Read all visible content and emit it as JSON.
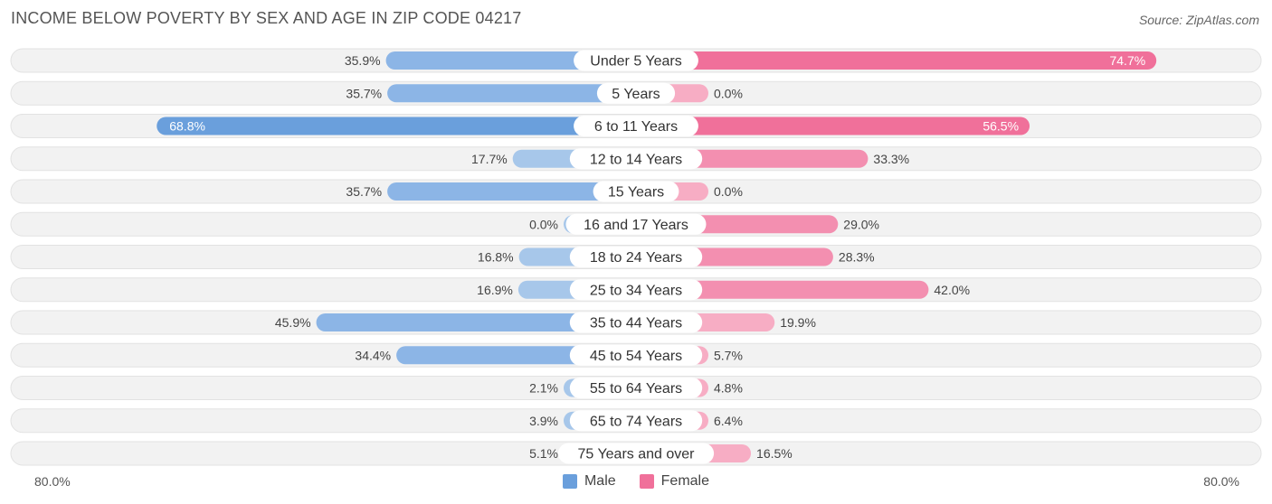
{
  "chart_data": {
    "type": "bar",
    "orientation": "horizontal-diverging",
    "title": "INCOME BELOW POVERTY BY SEX AND AGE IN ZIP CODE 04217",
    "source": "Source: ZipAtlas.com",
    "categories": [
      "Under 5 Years",
      "5 Years",
      "6 to 11 Years",
      "12 to 14 Years",
      "15 Years",
      "16 and 17 Years",
      "18 to 24 Years",
      "25 to 34 Years",
      "35 to 44 Years",
      "45 to 54 Years",
      "55 to 64 Years",
      "65 to 74 Years",
      "75 Years and over"
    ],
    "series": [
      {
        "name": "Male",
        "values": [
          35.9,
          35.7,
          68.8,
          17.7,
          35.7,
          0.0,
          16.8,
          16.9,
          45.9,
          34.4,
          2.1,
          3.9,
          5.1
        ],
        "labels": [
          "35.9%",
          "35.7%",
          "68.8%",
          "17.7%",
          "35.7%",
          "0.0%",
          "16.8%",
          "16.9%",
          "45.9%",
          "34.4%",
          "2.1%",
          "3.9%",
          "5.1%"
        ]
      },
      {
        "name": "Female",
        "values": [
          74.7,
          0.0,
          56.5,
          33.3,
          0.0,
          29.0,
          28.3,
          42.0,
          19.9,
          5.7,
          4.8,
          6.4,
          16.5
        ],
        "labels": [
          "74.7%",
          "0.0%",
          "56.5%",
          "33.3%",
          "0.0%",
          "29.0%",
          "28.3%",
          "42.0%",
          "19.9%",
          "5.7%",
          "4.8%",
          "6.4%",
          "16.5%"
        ]
      }
    ],
    "xlim": [
      -80,
      80
    ],
    "axis_min_label": "80.0%",
    "axis_max_label": "80.0%",
    "legend_position": "bottom-center",
    "colors": {
      "male_strong": "#6a9fdc",
      "male_light": "#a7c7ea",
      "female_strong": "#f0709a",
      "female_light": "#f7adc4",
      "track": "#f2f2f2"
    }
  }
}
